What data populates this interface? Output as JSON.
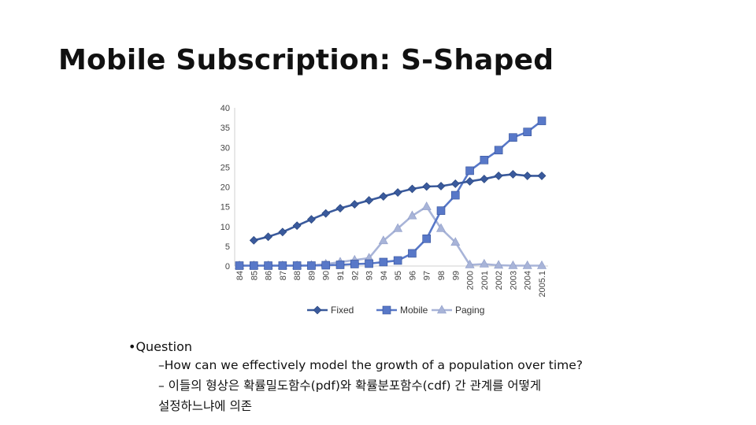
{
  "slide": {
    "title": "Mobile Subscription: S-Shaped",
    "bullets": {
      "question": "•Question",
      "item1": "–How can we effectively model the growth of a population over time?",
      "item2": "– 이들의 형상은 확률밀도함수(pdf)와 확률분포함수(cdf) 간 관계를 어떻게",
      "item3": "설정하느냐에 의존"
    }
  },
  "chart_data": {
    "type": "line",
    "categories": [
      "84",
      "85",
      "86",
      "87",
      "88",
      "89",
      "90",
      "91",
      "92",
      "93",
      "94",
      "95",
      "96",
      "97",
      "98",
      "99",
      "2000",
      "2001",
      "2002",
      "2003",
      "2004",
      "2005.1"
    ],
    "ylim": [
      0,
      40
    ],
    "yticks": [
      0,
      5,
      10,
      15,
      20,
      25,
      30,
      35,
      40
    ],
    "grid": false,
    "legend": "bottom",
    "series": [
      {
        "name": "Fixed",
        "color": "#3a5a9c",
        "marker": "diamond",
        "values": [
          null,
          6.5,
          7.4,
          8.6,
          10.2,
          11.8,
          13.3,
          14.6,
          15.6,
          16.6,
          17.6,
          18.6,
          19.5,
          20.1,
          20.2,
          20.8,
          21.4,
          22.0,
          22.8,
          23.2,
          22.8,
          22.8
        ]
      },
      {
        "name": "Mobile",
        "color": "#5878c8",
        "marker": "square",
        "values": [
          0.1,
          0.1,
          0.1,
          0.1,
          0.1,
          0.1,
          0.2,
          0.3,
          0.5,
          0.6,
          1.0,
          1.4,
          3.2,
          6.9,
          14.0,
          17.9,
          24.1,
          26.8,
          29.3,
          32.5,
          33.9,
          36.7
        ]
      },
      {
        "name": "Paging",
        "color": "#a8b4d8",
        "marker": "triangle",
        "values": [
          0.1,
          0.1,
          0.1,
          0.1,
          0.1,
          0.2,
          0.5,
          1.0,
          1.5,
          2.0,
          6.4,
          9.5,
          12.7,
          15.0,
          9.5,
          6.0,
          0.3,
          0.5,
          0.2,
          0.1,
          0.1,
          0.1
        ]
      }
    ]
  }
}
